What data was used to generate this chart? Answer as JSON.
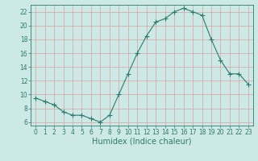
{
  "x": [
    0,
    1,
    2,
    3,
    4,
    5,
    6,
    7,
    8,
    9,
    10,
    11,
    12,
    13,
    14,
    15,
    16,
    17,
    18,
    19,
    20,
    21,
    22,
    23
  ],
  "y": [
    9.5,
    9.0,
    8.5,
    7.5,
    7.0,
    7.0,
    6.5,
    6.0,
    7.0,
    10.0,
    13.0,
    16.0,
    18.5,
    20.5,
    21.0,
    22.0,
    22.5,
    22.0,
    21.5,
    18.0,
    15.0,
    13.0,
    13.0,
    11.5
  ],
  "line_color": "#2d7b6e",
  "marker": "+",
  "marker_size": 4,
  "bg_color": "#cce9e5",
  "grid_color": "#d9a0a0",
  "xlabel": "Humidex (Indice chaleur)",
  "ylim": [
    5.5,
    23.0
  ],
  "xlim": [
    -0.5,
    23.5
  ],
  "yticks": [
    6,
    8,
    10,
    12,
    14,
    16,
    18,
    20,
    22
  ],
  "xticks": [
    0,
    1,
    2,
    3,
    4,
    5,
    6,
    7,
    8,
    9,
    10,
    11,
    12,
    13,
    14,
    15,
    16,
    17,
    18,
    19,
    20,
    21,
    22,
    23
  ],
  "tick_fontsize": 5.5,
  "xlabel_fontsize": 7
}
